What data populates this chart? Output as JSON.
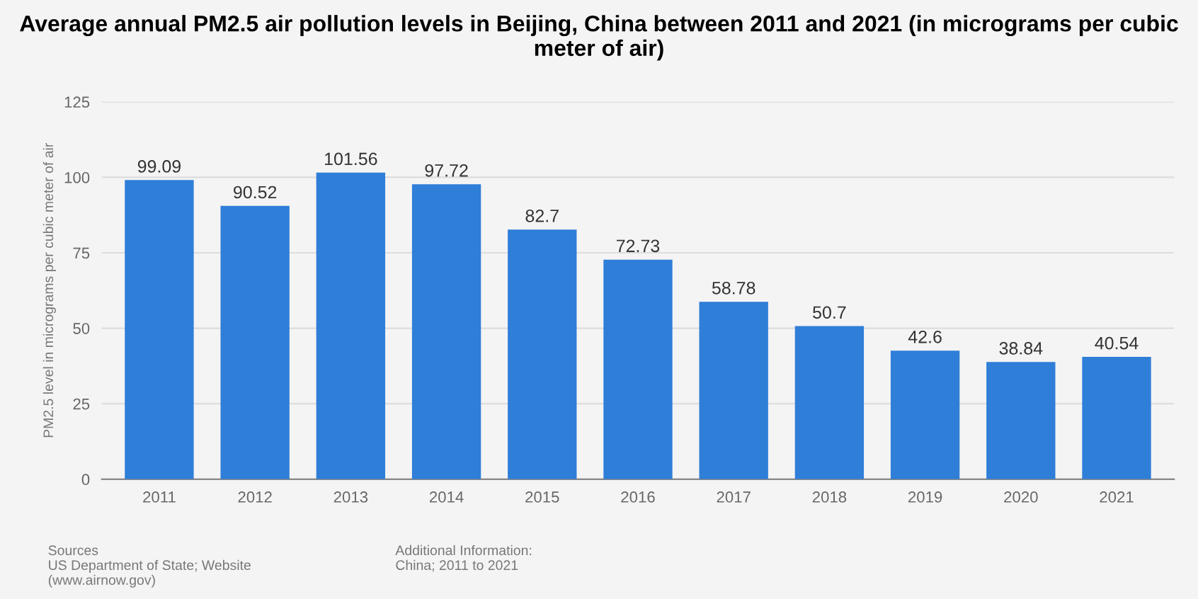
{
  "chart_data": {
    "type": "bar",
    "title": "Average annual PM2.5 air pollution levels in Beijing, China between 2011 and 2021 (in micrograms per cubic meter of air)",
    "ylabel": "PM2.5 level in micrograms per cubic meter of air",
    "categories": [
      "2011",
      "2012",
      "2013",
      "2014",
      "2015",
      "2016",
      "2017",
      "2018",
      "2019",
      "2020",
      "2021"
    ],
    "values": [
      99.09,
      90.52,
      101.56,
      97.72,
      82.7,
      72.73,
      58.78,
      50.7,
      42.6,
      38.84,
      40.54
    ],
    "value_labels": [
      "99.09",
      "90.52",
      "101.56",
      "97.72",
      "82.7",
      "72.73",
      "58.78",
      "50.7",
      "42.6",
      "38.84",
      "40.54"
    ],
    "color": "#2f7ed8",
    "ylim": [
      0,
      125
    ],
    "yticks": [
      0,
      25,
      50,
      75,
      100,
      125
    ],
    "grid": "y",
    "annotations": [
      "Sources\nUS Department of State; Website\n(www.airnow.gov)",
      "Additional Information:\nChina; 2011 to 2021"
    ]
  }
}
